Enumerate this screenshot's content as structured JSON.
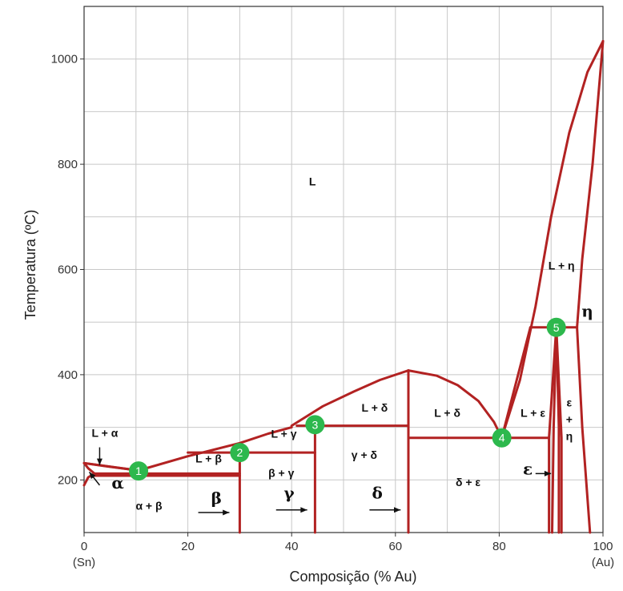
{
  "chart_data": {
    "type": "line",
    "title": "",
    "xlabel": "Composição (% Au)",
    "ylabel": "Temperatura (ºC)",
    "xlim": [
      0,
      100
    ],
    "ylim": [
      100,
      1100
    ],
    "x_ticks": [
      "0",
      "20",
      "40",
      "60",
      "80",
      "100"
    ],
    "x_tick_values": [
      0,
      20,
      40,
      60,
      80,
      100
    ],
    "y_ticks": [
      "200",
      "400",
      "600",
      "800",
      "1000"
    ],
    "y_tick_values": [
      200,
      400,
      600,
      800,
      1000
    ],
    "x_end_labels": {
      "left": "(Sn)",
      "right": "(Au)"
    },
    "grid": true,
    "line_color": "#b22222",
    "marker_color": "#2db84d",
    "curves": [
      {
        "name": "",
        "points": [
          [
            0,
            232
          ],
          [
            10.5,
            218
          ],
          [
            20,
            245
          ],
          [
            30,
            270
          ],
          [
            35.5,
            288
          ],
          [
            40,
            300
          ]
        ]
      },
      {
        "name": "",
        "points": [
          [
            40,
            303
          ],
          [
            46,
            340
          ],
          [
            52,
            368
          ],
          [
            57,
            390
          ],
          [
            62.5,
            408
          ]
        ]
      },
      {
        "name": "",
        "points": [
          [
            62.5,
            408
          ],
          [
            68,
            398
          ],
          [
            72,
            380
          ],
          [
            76,
            350
          ],
          [
            79,
            310
          ],
          [
            80.5,
            280
          ]
        ]
      },
      {
        "name": "",
        "points": [
          [
            80.5,
            280
          ],
          [
            84,
            390
          ],
          [
            87,
            530
          ],
          [
            90,
            700
          ],
          [
            93.5,
            860
          ],
          [
            97,
            975
          ],
          [
            100,
            1034
          ]
        ]
      },
      {
        "name": "",
        "points": [
          [
            0,
            232
          ],
          [
            5,
            225
          ],
          [
            10.5,
            218
          ]
        ]
      },
      {
        "name": "",
        "points": [
          [
            0,
            232
          ],
          [
            0.8,
            222
          ],
          [
            2,
            212
          ]
        ]
      },
      {
        "name": "",
        "points": [
          [
            0,
            190
          ],
          [
            0.8,
            205
          ],
          [
            2,
            212
          ]
        ]
      },
      {
        "name": "",
        "points": [
          [
            80.5,
            280
          ],
          [
            86,
            490
          ]
        ]
      },
      {
        "name": "",
        "points": [
          [
            86,
            490
          ],
          [
            91,
            490
          ]
        ]
      },
      {
        "name": "",
        "points": [
          [
            91,
            490
          ],
          [
            95,
            490
          ]
        ]
      },
      {
        "name": "",
        "points": [
          [
            100,
            1034
          ],
          [
            98,
            800
          ],
          [
            96,
            620
          ],
          [
            95,
            490
          ]
        ]
      },
      {
        "name": "",
        "points": [
          [
            95,
            490
          ],
          [
            96,
            300
          ],
          [
            97.5,
            100
          ]
        ]
      },
      {
        "name": "",
        "points": [
          [
            91,
            490
          ],
          [
            89.6,
            280
          ],
          [
            89.6,
            100
          ]
        ]
      },
      {
        "name": "",
        "points": [
          [
            91,
            490
          ],
          [
            92,
            280
          ],
          [
            92,
            100
          ]
        ]
      },
      {
        "name": "",
        "points": [
          [
            91,
            490
          ],
          [
            90.5,
            300
          ],
          [
            90.2,
            100
          ]
        ]
      },
      {
        "name": "",
        "points": [
          [
            91,
            490
          ],
          [
            91.5,
            300
          ],
          [
            91.5,
            100
          ]
        ]
      },
      {
        "name": "",
        "points": [
          [
            80.5,
            280
          ],
          [
            89.6,
            280
          ]
        ]
      },
      {
        "name": "",
        "points": [
          [
            62.5,
            280
          ],
          [
            80.5,
            280
          ]
        ]
      },
      {
        "name": "",
        "points": [
          [
            62.5,
            408
          ],
          [
            62.5,
            100
          ]
        ]
      },
      {
        "name": "",
        "points": [
          [
            41,
            303
          ],
          [
            62.5,
            303
          ]
        ]
      },
      {
        "name": "",
        "points": [
          [
            44.5,
            303
          ],
          [
            44.5,
            100
          ]
        ]
      },
      {
        "name": "",
        "points": [
          [
            30,
            252
          ],
          [
            44.5,
            252
          ]
        ]
      },
      {
        "name": "",
        "points": [
          [
            30,
            252
          ],
          [
            30,
            100
          ]
        ]
      },
      {
        "name": "",
        "points": [
          [
            20,
            252
          ],
          [
            30,
            252
          ]
        ]
      },
      {
        "name": "",
        "points": [
          [
            2,
            212
          ],
          [
            30,
            212
          ]
        ]
      },
      {
        "name": "",
        "points": [
          [
            2,
            208
          ],
          [
            30,
            208
          ]
        ]
      }
    ],
    "invariant_points": [
      {
        "label": "1",
        "x": 10.5,
        "y": 217
      },
      {
        "label": "2",
        "x": 30,
        "y": 252
      },
      {
        "label": "3",
        "x": 44.5,
        "y": 305
      },
      {
        "label": "4",
        "x": 80.5,
        "y": 280
      },
      {
        "label": "5",
        "x": 91,
        "y": 490
      }
    ],
    "region_labels": [
      {
        "text": "L",
        "x": 44,
        "y": 760
      },
      {
        "text": "L + η",
        "x": 92,
        "y": 600
      },
      {
        "text": "L + δ",
        "x": 56,
        "y": 330
      },
      {
        "text": "L + δ",
        "x": 70,
        "y": 320
      },
      {
        "text": "L + ε",
        "x": 86.5,
        "y": 320
      },
      {
        "text": "L + γ",
        "x": 38.5,
        "y": 280
      },
      {
        "text": "L + β",
        "x": 24,
        "y": 233
      },
      {
        "text": "L + α",
        "x": 4,
        "y": 282
      },
      {
        "text": "β + γ",
        "x": 38,
        "y": 206
      },
      {
        "text": "γ + δ",
        "x": 54,
        "y": 240
      },
      {
        "text": "δ + ε",
        "x": 74,
        "y": 188
      },
      {
        "text": "α + β",
        "x": 12.5,
        "y": 143
      },
      {
        "text": "ε",
        "x": 93.5,
        "y": 340
      },
      {
        "text": "+",
        "x": 93.5,
        "y": 308
      },
      {
        "text": "η",
        "x": 93.5,
        "y": 276
      }
    ],
    "phase_labels": [
      {
        "text": "α",
        "x": 6.5,
        "y": 184
      },
      {
        "text": "β",
        "x": 25.5,
        "y": 155
      },
      {
        "text": "γ",
        "x": 39.5,
        "y": 165
      },
      {
        "text": "δ",
        "x": 56.5,
        "y": 165
      },
      {
        "text": "ε",
        "x": 85.5,
        "y": 210
      },
      {
        "text": "η",
        "x": 97,
        "y": 510
      }
    ],
    "arrows": [
      {
        "label": "α",
        "from": [
          3,
          190
        ],
        "to": [
          1,
          215
        ]
      },
      {
        "label": "L + α",
        "from": [
          3,
          262
        ],
        "to": [
          3,
          228
        ]
      },
      {
        "label": "β",
        "from": [
          22,
          138
        ],
        "to": [
          28,
          138
        ]
      },
      {
        "label": "γ",
        "from": [
          37,
          143
        ],
        "to": [
          43,
          143
        ]
      },
      {
        "label": "δ",
        "from": [
          55,
          143
        ],
        "to": [
          61,
          143
        ]
      },
      {
        "label": "ε",
        "from": [
          87,
          212
        ],
        "to": [
          90,
          212
        ]
      }
    ]
  }
}
